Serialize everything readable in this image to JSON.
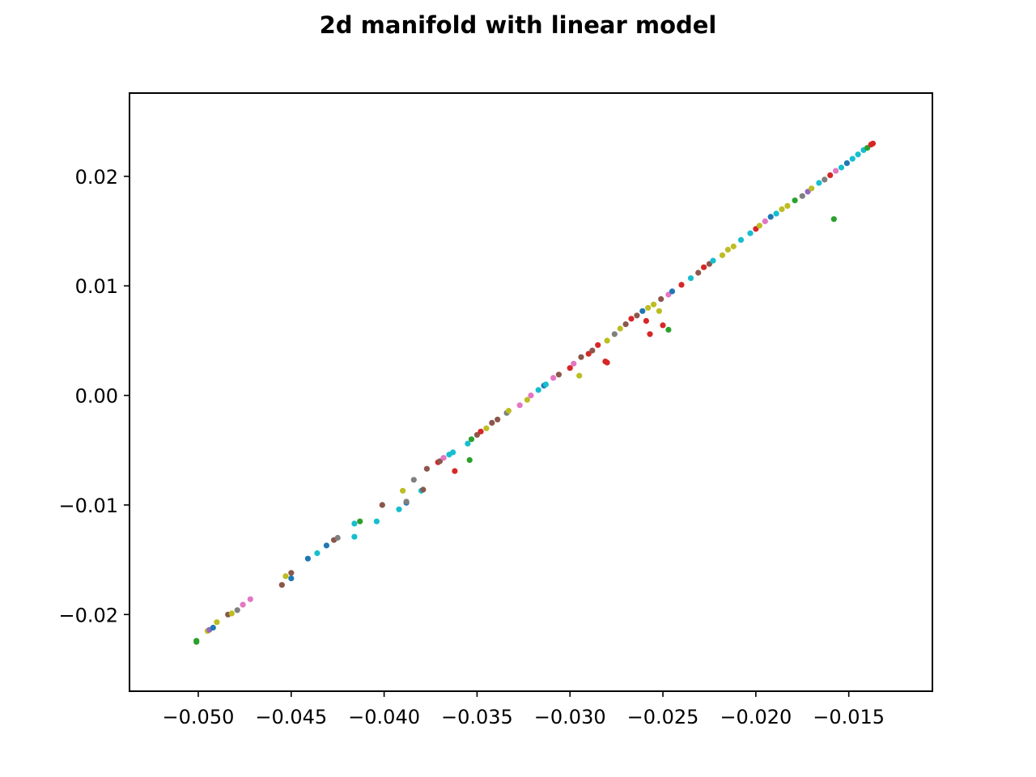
{
  "chart_data": {
    "type": "scatter",
    "title": "2d manifold with linear model",
    "xlabel": "",
    "ylabel": "",
    "xlim": [
      -0.0537,
      -0.0105
    ],
    "ylim": [
      -0.027,
      0.0276
    ],
    "grid": false,
    "legend": "none",
    "x_ticks": [
      -0.05,
      -0.045,
      -0.04,
      -0.035,
      -0.03,
      -0.025,
      -0.02,
      -0.015
    ],
    "x_tick_labels": [
      "−0.050",
      "−0.045",
      "−0.040",
      "−0.035",
      "−0.030",
      "−0.025",
      "−0.020",
      "−0.015"
    ],
    "y_ticks": [
      -0.02,
      -0.01,
      0.0,
      0.01,
      0.02
    ],
    "y_tick_labels": [
      "−0.02",
      "−0.01",
      "0.00",
      "0.01",
      "0.02"
    ],
    "colors": [
      "#1f77b4",
      "#ff7f0e",
      "#2ca02c",
      "#d62728",
      "#9467bd",
      "#8c564b",
      "#e377c2",
      "#7f7f7f",
      "#bcbd22",
      "#17becf"
    ],
    "points": [
      [
        -0.0501,
        -0.0225,
        2
      ],
      [
        -0.0501,
        -0.0224,
        2
      ],
      [
        -0.0495,
        -0.0215,
        8
      ],
      [
        -0.0494,
        -0.0214,
        4
      ],
      [
        -0.0492,
        -0.0212,
        0
      ],
      [
        -0.049,
        -0.0207,
        8
      ],
      [
        -0.0484,
        -0.02,
        5
      ],
      [
        -0.0482,
        -0.0199,
        8
      ],
      [
        -0.0479,
        -0.0196,
        7
      ],
      [
        -0.0476,
        -0.0191,
        6
      ],
      [
        -0.0472,
        -0.0186,
        6
      ],
      [
        -0.0455,
        -0.0173,
        5
      ],
      [
        -0.0453,
        -0.0165,
        8
      ],
      [
        -0.045,
        -0.0162,
        5
      ],
      [
        -0.045,
        -0.0167,
        0
      ],
      [
        -0.0441,
        -0.0149,
        0
      ],
      [
        -0.0436,
        -0.0144,
        9
      ],
      [
        -0.0431,
        -0.0137,
        0
      ],
      [
        -0.0427,
        -0.0132,
        5
      ],
      [
        -0.0425,
        -0.013,
        7
      ],
      [
        -0.0416,
        -0.0129,
        9
      ],
      [
        -0.0416,
        -0.0117,
        9
      ],
      [
        -0.0413,
        -0.0115,
        2
      ],
      [
        -0.0404,
        -0.0115,
        9
      ],
      [
        -0.0401,
        -0.01,
        5
      ],
      [
        -0.0392,
        -0.0104,
        9
      ],
      [
        -0.039,
        -0.0087,
        8
      ],
      [
        -0.0388,
        -0.0098,
        0
      ],
      [
        -0.0388,
        -0.0097,
        7
      ],
      [
        -0.0384,
        -0.0077,
        7
      ],
      [
        -0.038,
        -0.0087,
        9
      ],
      [
        -0.0379,
        -0.0086,
        5
      ],
      [
        -0.0377,
        -0.0067,
        5
      ],
      [
        -0.0371,
        -0.0061,
        3
      ],
      [
        -0.037,
        -0.006,
        5
      ],
      [
        -0.0368,
        -0.0057,
        6
      ],
      [
        -0.0365,
        -0.0054,
        9
      ],
      [
        -0.0363,
        -0.0052,
        9
      ],
      [
        -0.0362,
        -0.0069,
        3
      ],
      [
        -0.0355,
        -0.0044,
        9
      ],
      [
        -0.0354,
        -0.0059,
        2
      ],
      [
        -0.0353,
        -0.004,
        2
      ],
      [
        -0.035,
        -0.0036,
        5
      ],
      [
        -0.0348,
        -0.0033,
        3
      ],
      [
        -0.0345,
        -0.003,
        8
      ],
      [
        -0.0342,
        -0.0025,
        5
      ],
      [
        -0.0339,
        -0.0022,
        5
      ],
      [
        -0.0334,
        -0.0016,
        7
      ],
      [
        -0.0333,
        -0.0014,
        8
      ],
      [
        -0.0327,
        -0.0009,
        6
      ],
      [
        -0.0323,
        -0.0004,
        8
      ],
      [
        -0.0321,
        0.0,
        6
      ],
      [
        -0.0317,
        0.0005,
        9
      ],
      [
        -0.0314,
        0.0009,
        0
      ],
      [
        -0.0313,
        0.001,
        9
      ],
      [
        -0.0309,
        0.0016,
        6
      ],
      [
        -0.0306,
        0.0019,
        5
      ],
      [
        -0.03,
        0.0025,
        3
      ],
      [
        -0.0298,
        0.0029,
        6
      ],
      [
        -0.0295,
        0.0018,
        8
      ],
      [
        -0.0294,
        0.0035,
        5
      ],
      [
        -0.029,
        0.0038,
        3
      ],
      [
        -0.0288,
        0.0041,
        5
      ],
      [
        -0.0285,
        0.0046,
        3
      ],
      [
        -0.0281,
        0.0031,
        3
      ],
      [
        -0.028,
        0.005,
        8
      ],
      [
        -0.028,
        0.003,
        3
      ],
      [
        -0.0276,
        0.0056,
        7
      ],
      [
        -0.0273,
        0.0061,
        8
      ],
      [
        -0.027,
        0.0065,
        5
      ],
      [
        -0.0267,
        0.007,
        3
      ],
      [
        -0.0264,
        0.0073,
        5
      ],
      [
        -0.0261,
        0.0077,
        0
      ],
      [
        -0.0259,
        0.0068,
        3
      ],
      [
        -0.0258,
        0.008,
        8
      ],
      [
        -0.0257,
        0.0056,
        3
      ],
      [
        -0.0255,
        0.0083,
        8
      ],
      [
        -0.0252,
        0.0077,
        8
      ],
      [
        -0.0251,
        0.0088,
        5
      ],
      [
        -0.025,
        0.0064,
        3
      ],
      [
        -0.0247,
        0.006,
        2
      ],
      [
        -0.0247,
        0.0092,
        6
      ],
      [
        -0.0245,
        0.0095,
        0
      ],
      [
        -0.024,
        0.0101,
        3
      ],
      [
        -0.0235,
        0.0107,
        9
      ],
      [
        -0.0231,
        0.0112,
        5
      ],
      [
        -0.0228,
        0.0117,
        3
      ],
      [
        -0.0225,
        0.012,
        5
      ],
      [
        -0.0223,
        0.0123,
        9
      ],
      [
        -0.0218,
        0.0128,
        8
      ],
      [
        -0.0215,
        0.0133,
        8
      ],
      [
        -0.0212,
        0.0136,
        8
      ],
      [
        -0.0208,
        0.0142,
        9
      ],
      [
        -0.0203,
        0.0148,
        9
      ],
      [
        -0.02,
        0.0152,
        3
      ],
      [
        -0.0198,
        0.0155,
        8
      ],
      [
        -0.0195,
        0.0159,
        6
      ],
      [
        -0.0192,
        0.0163,
        0
      ],
      [
        -0.0189,
        0.0166,
        9
      ],
      [
        -0.0186,
        0.017,
        8
      ],
      [
        -0.0183,
        0.0173,
        8
      ],
      [
        -0.0179,
        0.0178,
        2
      ],
      [
        -0.0175,
        0.0182,
        7
      ],
      [
        -0.0172,
        0.0186,
        4
      ],
      [
        -0.017,
        0.0189,
        8
      ],
      [
        -0.0166,
        0.0194,
        9
      ],
      [
        -0.0163,
        0.0197,
        7
      ],
      [
        -0.016,
        0.0201,
        3
      ],
      [
        -0.0158,
        0.0161,
        2
      ],
      [
        -0.0157,
        0.0205,
        6
      ],
      [
        -0.0154,
        0.0208,
        9
      ],
      [
        -0.0151,
        0.0212,
        0
      ],
      [
        -0.0148,
        0.0216,
        9
      ],
      [
        -0.0145,
        0.022,
        9
      ],
      [
        -0.0142,
        0.0224,
        9
      ],
      [
        -0.014,
        0.0226,
        2
      ],
      [
        -0.0138,
        0.0229,
        3
      ],
      [
        -0.0137,
        0.023,
        3
      ]
    ]
  }
}
